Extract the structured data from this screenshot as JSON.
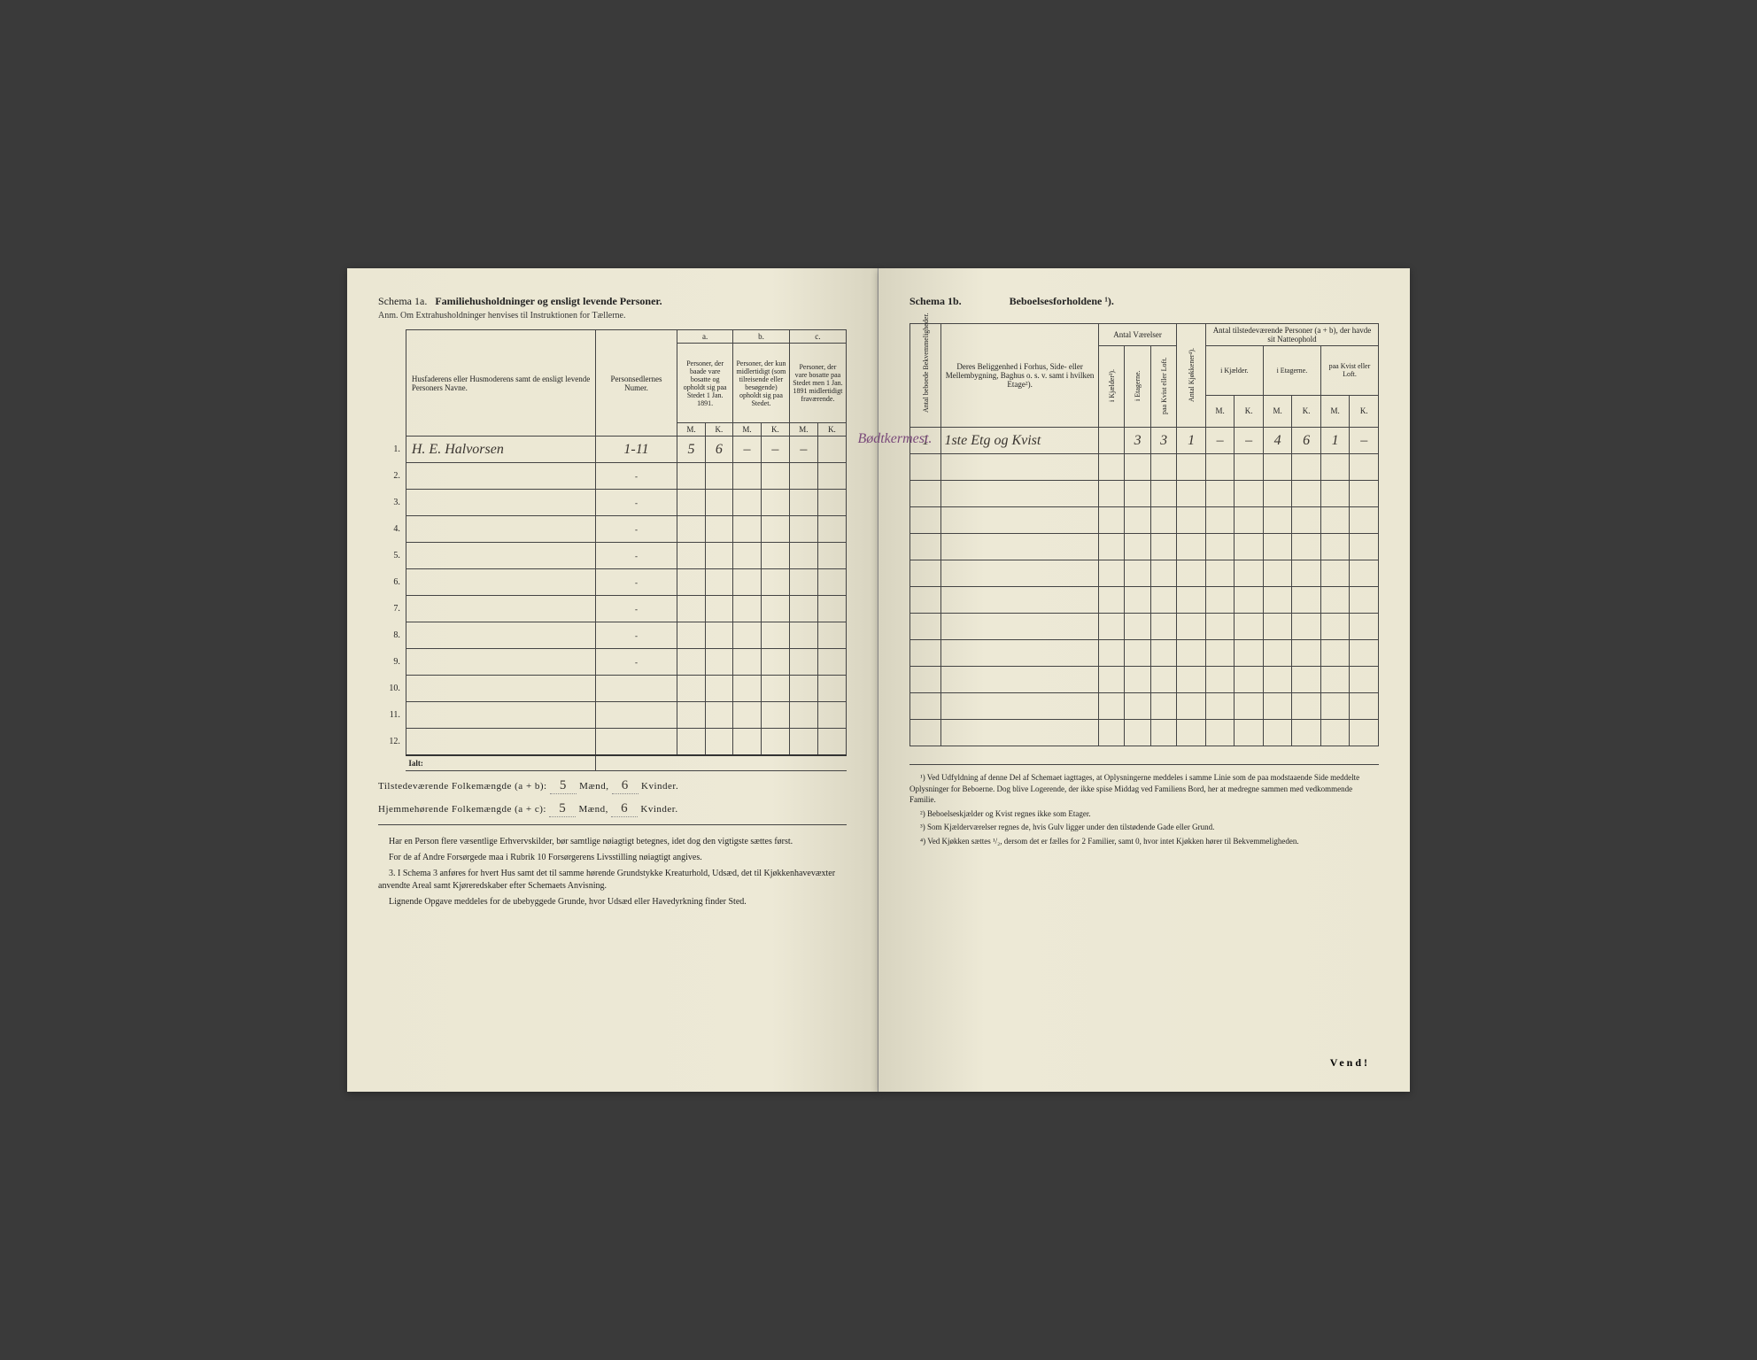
{
  "left": {
    "schema": "Schema 1a.",
    "title": "Familiehusholdninger og ensligt levende Personer.",
    "subtitle": "Anm. Om Extrahusholdninger henvises til Instruktionen for Tællerne.",
    "headers": {
      "name": "Husfaderens eller Husmoderens samt de ensligt levende Personers Navne.",
      "numer": "Personsedlernes Numer.",
      "a_label": "a.",
      "a_text": "Personer, der baade vare bosatte og opholdt sig paa Stedet 1 Jan. 1891.",
      "b_label": "b.",
      "b_text": "Personer, der kun midlertidigt (som tilreisende eller besøgende) opholdt sig paa Stedet.",
      "c_label": "c.",
      "c_text": "Personer, der vare bosatte paa Stedet men 1 Jan. 1891 midlertidigt fraværende.",
      "m": "M.",
      "k": "K."
    },
    "rows": [
      {
        "n": "1.",
        "name": "H. E. Halvorsen",
        "numer": "1-11",
        "am": "5",
        "ak": "6",
        "bm": "–",
        "bk": "–",
        "cm": "–",
        "ck": ""
      },
      {
        "n": "2.",
        "name": "",
        "numer": "-",
        "am": "",
        "ak": "",
        "bm": "",
        "bk": "",
        "cm": "",
        "ck": ""
      },
      {
        "n": "3.",
        "name": "",
        "numer": "-",
        "am": "",
        "ak": "",
        "bm": "",
        "bk": "",
        "cm": "",
        "ck": ""
      },
      {
        "n": "4.",
        "name": "",
        "numer": "-",
        "am": "",
        "ak": "",
        "bm": "",
        "bk": "",
        "cm": "",
        "ck": ""
      },
      {
        "n": "5.",
        "name": "",
        "numer": "-",
        "am": "",
        "ak": "",
        "bm": "",
        "bk": "",
        "cm": "",
        "ck": ""
      },
      {
        "n": "6.",
        "name": "",
        "numer": "-",
        "am": "",
        "ak": "",
        "bm": "",
        "bk": "",
        "cm": "",
        "ck": ""
      },
      {
        "n": "7.",
        "name": "",
        "numer": "-",
        "am": "",
        "ak": "",
        "bm": "",
        "bk": "",
        "cm": "",
        "ck": ""
      },
      {
        "n": "8.",
        "name": "",
        "numer": "-",
        "am": "",
        "ak": "",
        "bm": "",
        "bk": "",
        "cm": "",
        "ck": ""
      },
      {
        "n": "9.",
        "name": "",
        "numer": "-",
        "am": "",
        "ak": "",
        "bm": "",
        "bk": "",
        "cm": "",
        "ck": ""
      },
      {
        "n": "10.",
        "name": "",
        "numer": "",
        "am": "",
        "ak": "",
        "bm": "",
        "bk": "",
        "cm": "",
        "ck": ""
      },
      {
        "n": "11.",
        "name": "",
        "numer": "",
        "am": "",
        "ak": "",
        "bm": "",
        "bk": "",
        "cm": "",
        "ck": ""
      },
      {
        "n": "12.",
        "name": "",
        "numer": "",
        "am": "",
        "ak": "",
        "bm": "",
        "bk": "",
        "cm": "",
        "ck": ""
      }
    ],
    "ialt": "Ialt:",
    "tilstede_label": "Tilstedeværende Folkemængde (a + b):",
    "tilstede_m": "5",
    "tilstede_k": "6",
    "hjemme_label": "Hjemmehørende Folkemængde (a + c):",
    "hjemme_m": "5",
    "hjemme_k": "6",
    "maend": "Mænd,",
    "kvinder": "Kvinder.",
    "bottom1": "Har en Person flere væsentlige Erhvervskilder, bør samtlige nøiagtigt betegnes, idet dog den vigtigste sættes først.",
    "bottom2": "For de af Andre Forsørgede maa i Rubrik 10 Forsørgerens Livsstilling nøiagtigt angives.",
    "bottom3": "3. I Schema 3 anføres for hvert Hus samt det til samme hørende Grundstykke Kreaturhold, Udsæd, det til Kjøkkenhavevæxter anvendte Areal samt Kjøreredskaber efter Schemaets Anvisning.",
    "bottom4": "Lignende Opgave meddeles for de ubebyggede Grunde, hvor Udsæd eller Havedyrkning finder Sted."
  },
  "right": {
    "schema": "Schema 1b.",
    "title": "Beboelsesforholdene ¹).",
    "headers": {
      "antal_bekv": "Antal beboede Bekvemmeligheder.",
      "belig": "Deres Beliggenhed i Forhus, Side- eller Mellembygning, Baghus o. s. v. samt i hvilken Etage²).",
      "vaerelser": "Antal Værelser",
      "kjaelder": "i Kjælder³).",
      "etagerne": "i Etagerne.",
      "kvist": "paa Kvist eller Loft.",
      "kjokken": "Antal Kjøkkener⁴).",
      "tilstede": "Antal tilstedeværende Personer (a + b), der havde sit Natteophold",
      "ikjael": "i Kjælder.",
      "ietag": "i Etagerne.",
      "paakvist": "paa Kvist eller Loft.",
      "m": "M.",
      "k": "K."
    },
    "row1": {
      "occ": "Bødtkermest.",
      "bekv": "1",
      "belig": "1ste Etg og Kvist",
      "kj": "",
      "et": "3",
      "kv": "3",
      "kjok": "1",
      "km": "–",
      "kk": "–",
      "em": "4",
      "ek": "6",
      "lm": "1",
      "lk": "–"
    },
    "fn1": "¹) Ved Udfyldning af denne Del af Schemaet iagttages, at Oplysningerne meddeles i samme Linie som de paa modstaaende Side meddelte Oplysninger for Beboerne. Dog blive Logerende, der ikke spise Middag ved Familiens Bord, her at medregne sammen med vedkommende Familie.",
    "fn2": "²) Beboelseskjælder og Kvist regnes ikke som Etager.",
    "fn3": "³) Som Kjælderværelser regnes de, hvis Gulv ligger under den tilstødende Gade eller Grund.",
    "fn4": "⁴) Ved Kjøkken sættes ¹/₂, dersom det er fælles for 2 Familier, samt 0, hvor intet Kjøkken hører til Bekvemmeligheden.",
    "vend": "Vend!"
  }
}
